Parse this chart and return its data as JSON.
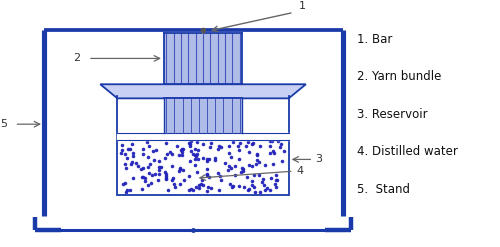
{
  "fig_width": 5.0,
  "fig_height": 2.47,
  "dpi": 100,
  "bg_color": "#ffffff",
  "stand_color": "#1a3aaa",
  "stand_lw": 2.2,
  "yarn_fill": "#b0bce8",
  "yarn_stripe_color": "#4455bb",
  "reservoir_fill": "#c8d0f4",
  "water_fill": "#ffffff",
  "water_dot_color": "#2222bb",
  "arrow_color": "#666666",
  "label_color": "#111111",
  "label_fontsize": 8.5,
  "num_fontsize": 8.0,
  "labels": {
    "1": "1. Bar",
    "2": "2. Yarn bundle",
    "3": "3. Reservoir",
    "4": "4. Distilled water",
    "5": "5.  Stand"
  }
}
